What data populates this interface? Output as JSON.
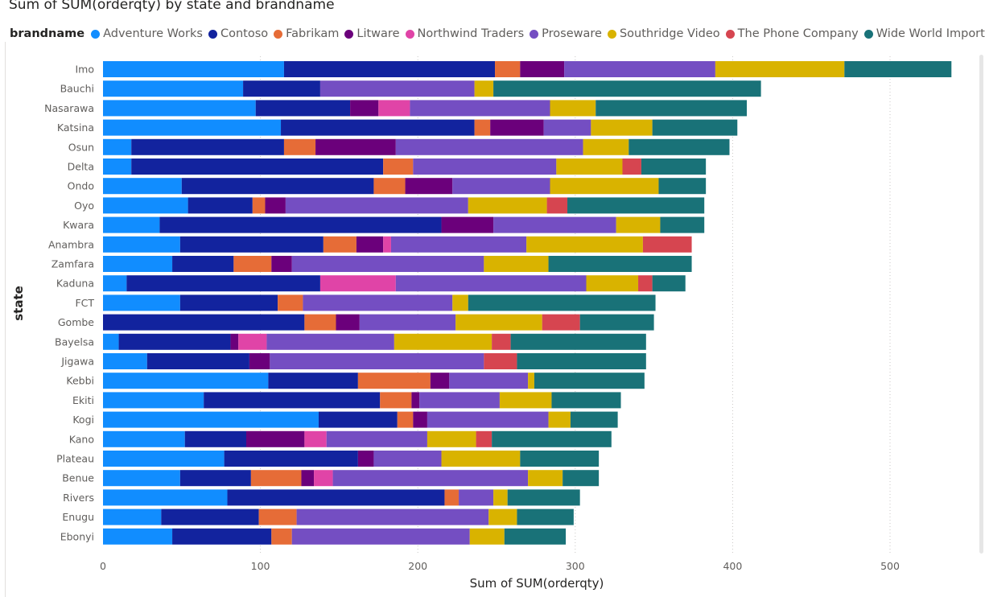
{
  "chart_data": {
    "type": "bar",
    "orientation": "horizontal",
    "stacked": true,
    "title": "Sum of SUM(orderqty) by state and brandname",
    "xlabel": "Sum of SUM(orderqty)",
    "ylabel": "state",
    "xlim": [
      0,
      550
    ],
    "xticks": [
      0,
      100,
      200,
      300,
      400,
      500
    ],
    "grid": true,
    "legend_title": "brandname",
    "legend_position": "top-left",
    "categories": [
      "Imo",
      "Bauchi",
      "Nasarawa",
      "Katsina",
      "Osun",
      "Delta",
      "Ondo",
      "Oyo",
      "Kwara",
      "Anambra",
      "Zamfara",
      "Kaduna",
      "FCT",
      "Gombe",
      "Bayelsa",
      "Jigawa",
      "Kebbi",
      "Ekiti",
      "Kogi",
      "Kano",
      "Plateau",
      "Benue",
      "Rivers",
      "Enugu",
      "Ebonyi"
    ],
    "series": [
      {
        "name": "Adventure Works",
        "color": "#118dff",
        "values": [
          115,
          89,
          97,
          113,
          18,
          18,
          50,
          54,
          36,
          49,
          44,
          15,
          49,
          0,
          10,
          28,
          105,
          64,
          137,
          52,
          77,
          49,
          79,
          37,
          44
        ]
      },
      {
        "name": "Contoso",
        "color": "#12239e",
        "values": [
          134,
          49,
          60,
          123,
          97,
          160,
          122,
          41,
          179,
          91,
          39,
          123,
          62,
          128,
          71,
          65,
          57,
          112,
          50,
          39,
          85,
          45,
          138,
          62,
          63
        ]
      },
      {
        "name": "Fabrikam",
        "color": "#e66c37",
        "values": [
          16,
          0,
          0,
          10,
          20,
          19,
          20,
          8,
          0,
          21,
          24,
          0,
          16,
          20,
          0,
          0,
          46,
          20,
          10,
          0,
          0,
          32,
          9,
          24,
          13
        ]
      },
      {
        "name": "Litware",
        "color": "#6b007b",
        "values": [
          28,
          0,
          18,
          34,
          51,
          0,
          30,
          13,
          33,
          17,
          13,
          0,
          0,
          15,
          5,
          13,
          12,
          5,
          9,
          37,
          10,
          8,
          0,
          0,
          0
        ]
      },
      {
        "name": "Northwind Traders",
        "color": "#e044a7",
        "values": [
          0,
          0,
          20,
          0,
          0,
          0,
          0,
          0,
          0,
          5,
          0,
          48,
          0,
          0,
          18,
          0,
          0,
          0,
          0,
          14,
          0,
          12,
          0,
          0,
          0
        ]
      },
      {
        "name": "Proseware",
        "color": "#744ec2",
        "values": [
          96,
          98,
          89,
          30,
          119,
          91,
          62,
          116,
          78,
          86,
          122,
          121,
          95,
          61,
          81,
          136,
          50,
          51,
          77,
          64,
          43,
          124,
          22,
          122,
          113
        ]
      },
      {
        "name": "Southridge Video",
        "color": "#d9b300",
        "values": [
          82,
          12,
          29,
          39,
          29,
          42,
          69,
          50,
          28,
          74,
          41,
          33,
          10,
          55,
          62,
          0,
          4,
          33,
          14,
          31,
          50,
          22,
          9,
          18,
          22
        ]
      },
      {
        "name": "The Phone Company",
        "color": "#d64550",
        "values": [
          0,
          0,
          0,
          0,
          0,
          12,
          0,
          13,
          0,
          31,
          0,
          9,
          0,
          24,
          12,
          21,
          0,
          0,
          0,
          10,
          0,
          0,
          0,
          0,
          0
        ]
      },
      {
        "name": "Wide World Importers",
        "color": "#197278",
        "values": [
          68,
          170,
          96,
          54,
          64,
          41,
          30,
          87,
          28,
          0,
          91,
          21,
          119,
          47,
          86,
          82,
          70,
          44,
          30,
          76,
          50,
          23,
          46,
          36,
          39
        ]
      }
    ]
  }
}
